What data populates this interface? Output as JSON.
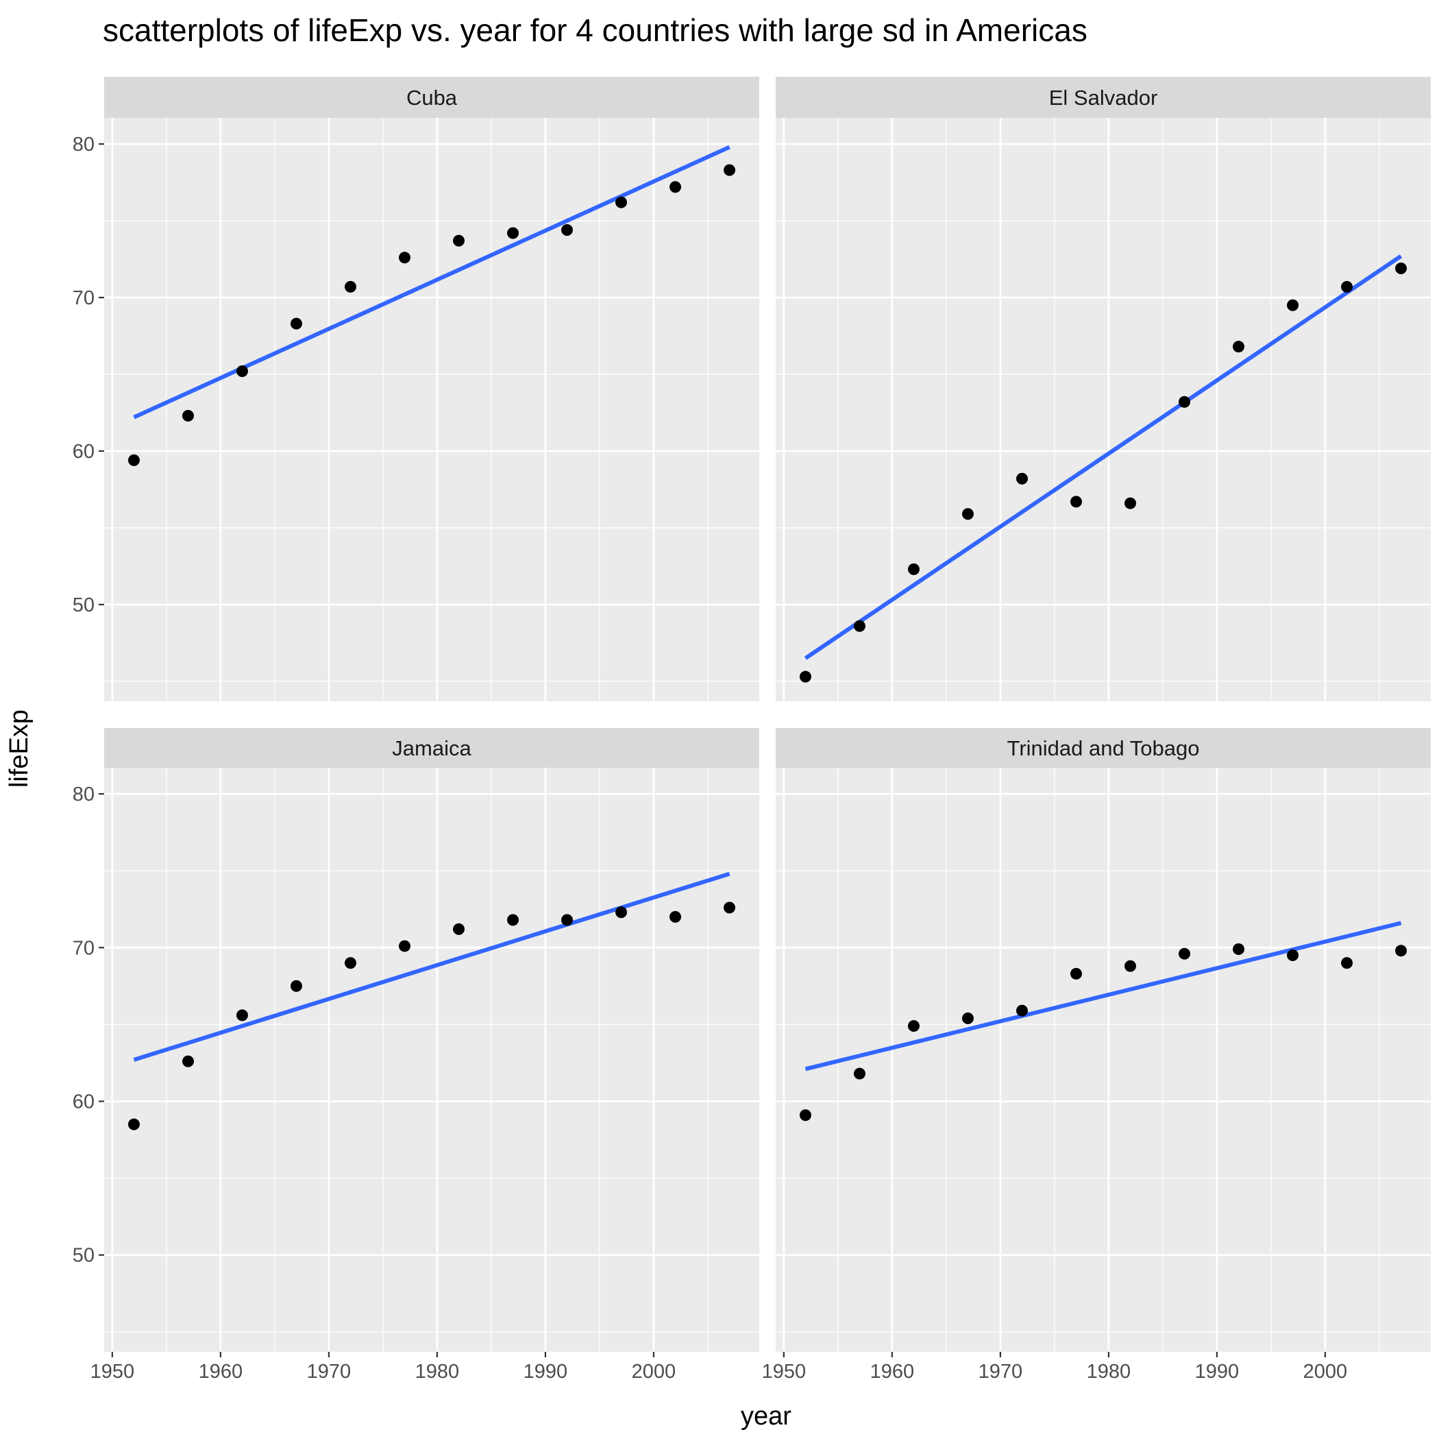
{
  "chart_data": {
    "type": "scatter",
    "title": "scatterplots of lifeExp vs. year for 4 countries with large sd in Americas",
    "xlabel": "year",
    "ylabel": "lifeExp",
    "xlim": [
      1949.25,
      2009.75
    ],
    "ylim": [
      43.7,
      81.7
    ],
    "xticks": [
      1950,
      1960,
      1970,
      1980,
      1990,
      2000
    ],
    "yticks": [
      50,
      60,
      70,
      80
    ],
    "grid": true,
    "facets": [
      "Cuba",
      "El Salvador",
      "Jamaica",
      "Trinidad and Tobago"
    ],
    "x": [
      1952,
      1957,
      1962,
      1967,
      1972,
      1977,
      1982,
      1987,
      1992,
      1997,
      2002,
      2007
    ],
    "point_color": "#000000",
    "line_color": "#3366FF",
    "panel_bg": "#EBEBEB",
    "strip_bg": "#D9D9D9",
    "series": [
      {
        "name": "Cuba",
        "values": [
          59.4,
          62.3,
          65.2,
          68.3,
          70.7,
          72.6,
          73.7,
          74.2,
          74.4,
          76.2,
          77.2,
          78.3
        ],
        "fit": [
          62.2,
          79.8
        ]
      },
      {
        "name": "El Salvador",
        "values": [
          45.3,
          48.6,
          52.3,
          55.9,
          58.2,
          56.7,
          56.6,
          63.2,
          66.8,
          69.5,
          70.7,
          71.9
        ],
        "fit": [
          46.5,
          72.7
        ]
      },
      {
        "name": "Jamaica",
        "values": [
          58.5,
          62.6,
          65.6,
          67.5,
          69.0,
          70.1,
          71.2,
          71.8,
          71.8,
          72.3,
          72.0,
          72.6
        ],
        "fit": [
          62.7,
          74.8
        ]
      },
      {
        "name": "Trinidad and Tobago",
        "values": [
          59.1,
          61.8,
          64.9,
          65.4,
          65.9,
          68.3,
          68.8,
          69.6,
          69.9,
          69.5,
          69.0,
          69.8
        ],
        "fit": [
          62.1,
          71.6
        ]
      }
    ]
  }
}
